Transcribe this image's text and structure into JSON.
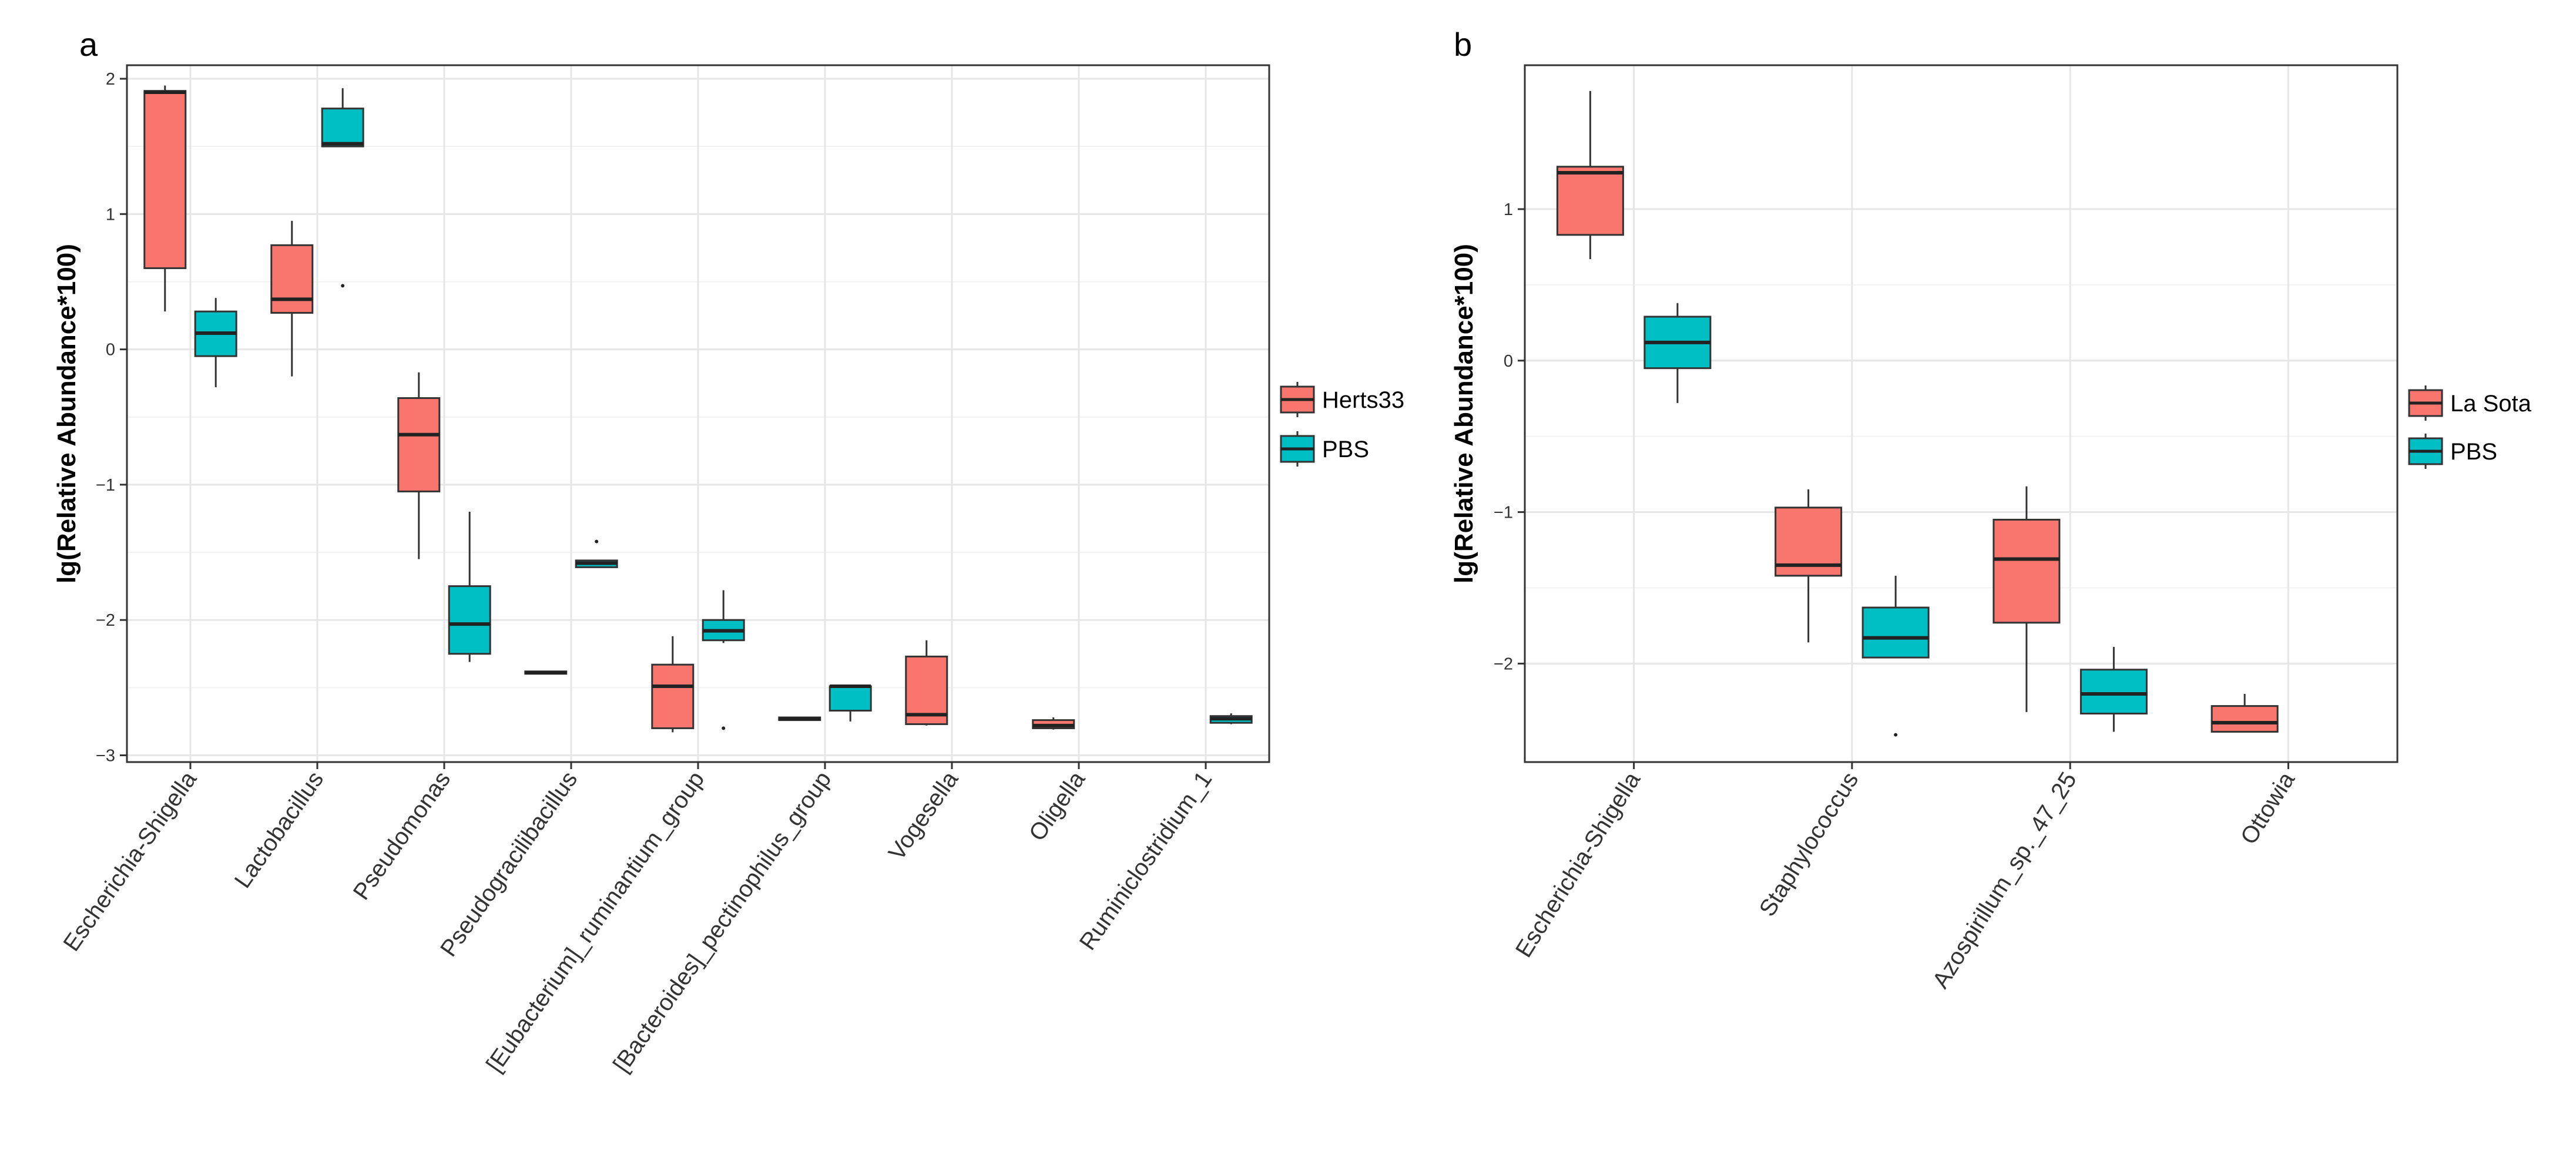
{
  "chart_data": [
    {
      "type": "boxplot",
      "panel": "a",
      "ylabel": "lg(Relative Abundance*100)",
      "xlabel": "",
      "ylim": [
        -3.05,
        2.1
      ],
      "yticks": [
        2,
        1,
        0,
        -1,
        -2,
        -3
      ],
      "grid": true,
      "legend_position": "right",
      "categories": [
        "Escherichia-Shigella",
        "Lactobacillus",
        "Pseudomonas",
        "Pseudogracilibacillus",
        "[Eubacterium]_ruminantium_group",
        "[Bacteroides]_pectinophilus_group",
        "Vogesella",
        "Oligella",
        "Ruminiclostridium_1"
      ],
      "series": [
        {
          "name": "Herts33",
          "color": "#F8766D",
          "boxes": [
            {
              "min": 0.28,
              "q1": 0.6,
              "median": 1.9,
              "q3": 1.91,
              "max": 1.95,
              "outliers": []
            },
            {
              "min": -0.2,
              "q1": 0.27,
              "median": 0.37,
              "q3": 0.77,
              "max": 0.95,
              "outliers": []
            },
            {
              "min": -1.55,
              "q1": -1.05,
              "median": -0.63,
              "q3": -0.36,
              "max": -0.17,
              "outliers": []
            },
            {
              "min": -2.39,
              "q1": -2.39,
              "median": -2.39,
              "q3": -2.38,
              "max": -2.38,
              "outliers": []
            },
            {
              "min": -2.83,
              "q1": -2.8,
              "median": -2.49,
              "q3": -2.33,
              "max": -2.12,
              "outliers": []
            },
            {
              "min": -2.74,
              "q1": -2.74,
              "median": -2.73,
              "q3": -2.72,
              "max": -2.72,
              "outliers": []
            },
            {
              "min": -2.78,
              "q1": -2.77,
              "median": -2.7,
              "q3": -2.27,
              "max": -2.15,
              "outliers": []
            },
            {
              "min": -2.81,
              "q1": -2.8,
              "median": -2.78,
              "q3": -2.74,
              "max": -2.72,
              "outliers": []
            },
            null
          ]
        },
        {
          "name": "PBS",
          "color": "#00BFC4",
          "boxes": [
            {
              "min": -0.28,
              "q1": -0.05,
              "median": 0.12,
              "q3": 0.28,
              "max": 0.38,
              "outliers": []
            },
            {
              "min": 1.5,
              "q1": 1.5,
              "median": 1.52,
              "q3": 1.78,
              "max": 1.93,
              "outliers": [
                0.47
              ]
            },
            {
              "min": -2.31,
              "q1": -2.25,
              "median": -2.03,
              "q3": -1.75,
              "max": -1.2,
              "outliers": []
            },
            {
              "min": -1.61,
              "q1": -1.61,
              "median": -1.58,
              "q3": -1.56,
              "max": -1.56,
              "outliers": [
                -1.42
              ]
            },
            {
              "min": -2.17,
              "q1": -2.15,
              "median": -2.08,
              "q3": -2.0,
              "max": -1.78,
              "outliers": [
                -2.8
              ]
            },
            {
              "min": -2.75,
              "q1": -2.67,
              "median": -2.49,
              "q3": -2.49,
              "max": -2.49,
              "outliers": []
            },
            null,
            null,
            {
              "min": -2.77,
              "q1": -2.76,
              "median": -2.73,
              "q3": -2.71,
              "max": -2.69,
              "outliers": []
            }
          ]
        }
      ]
    },
    {
      "type": "boxplot",
      "panel": "b",
      "ylabel": "lg(Relative Abundance*100)",
      "xlabel": "",
      "ylim": [
        -2.65,
        1.95
      ],
      "yticks": [
        1,
        0,
        -1,
        -2
      ],
      "grid": true,
      "legend_position": "right",
      "categories": [
        "Escherichia-Shigella",
        "Staphylococcus",
        "Azospirillum_sp._47_25",
        "Ottowia"
      ],
      "series": [
        {
          "name": "La Sota",
          "color": "#F8766D",
          "boxes": [
            {
              "min": 0.67,
              "q1": 0.83,
              "median": 1.24,
              "q3": 1.28,
              "max": 1.78,
              "outliers": []
            },
            {
              "min": -1.86,
              "q1": -1.42,
              "median": -1.35,
              "q3": -0.97,
              "max": -0.85,
              "outliers": []
            },
            {
              "min": -2.32,
              "q1": -1.73,
              "median": -1.31,
              "q3": -1.05,
              "max": -0.83,
              "outliers": []
            },
            {
              "min": -2.45,
              "q1": -2.45,
              "median": -2.39,
              "q3": -2.28,
              "max": -2.2,
              "outliers": []
            }
          ]
        },
        {
          "name": "PBS",
          "color": "#00BFC4",
          "boxes": [
            {
              "min": -0.28,
              "q1": -0.05,
              "median": 0.12,
              "q3": 0.29,
              "max": 0.38,
              "outliers": []
            },
            {
              "min": -1.96,
              "q1": -1.96,
              "median": -1.83,
              "q3": -1.63,
              "max": -1.42,
              "outliers": [
                -2.47
              ]
            },
            {
              "min": -2.45,
              "q1": -2.33,
              "median": -2.2,
              "q3": -2.04,
              "max": -1.89,
              "outliers": []
            },
            null
          ]
        }
      ]
    }
  ]
}
